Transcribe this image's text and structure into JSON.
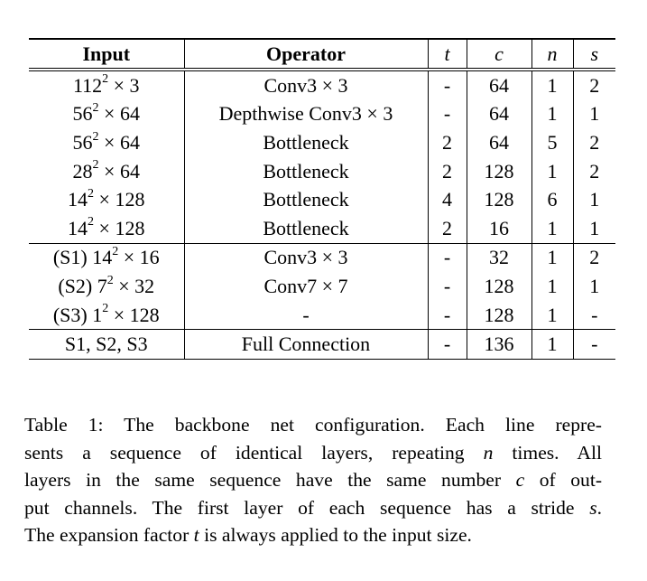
{
  "table": {
    "headers": [
      {
        "text": "Input",
        "italic": false
      },
      {
        "text": "Operator",
        "italic": false
      },
      {
        "text": "t",
        "italic": true
      },
      {
        "text": "c",
        "italic": true
      },
      {
        "text": "n",
        "italic": true
      },
      {
        "text": "s",
        "italic": true
      }
    ],
    "groups": [
      {
        "rows": [
          {
            "input": {
              "pre": "",
              "base": "112",
              "exp": "2",
              "post": " × 3"
            },
            "operator": "Conv3 × 3",
            "t": "-",
            "c": "64",
            "n": "1",
            "s": "2"
          },
          {
            "input": {
              "pre": "",
              "base": "56",
              "exp": "2",
              "post": " × 64"
            },
            "operator": "Depthwise Conv3 × 3",
            "t": "-",
            "c": "64",
            "n": "1",
            "s": "1"
          },
          {
            "input": {
              "pre": "",
              "base": "56",
              "exp": "2",
              "post": " × 64"
            },
            "operator": "Bottleneck",
            "t": "2",
            "c": "64",
            "n": "5",
            "s": "2"
          },
          {
            "input": {
              "pre": "",
              "base": "28",
              "exp": "2",
              "post": " × 64"
            },
            "operator": "Bottleneck",
            "t": "2",
            "c": "128",
            "n": "1",
            "s": "2"
          },
          {
            "input": {
              "pre": "",
              "base": "14",
              "exp": "2",
              "post": " × 128"
            },
            "operator": "Bottleneck",
            "t": "4",
            "c": "128",
            "n": "6",
            "s": "1"
          },
          {
            "input": {
              "pre": "",
              "base": "14",
              "exp": "2",
              "post": " × 128"
            },
            "operator": "Bottleneck",
            "t": "2",
            "c": "16",
            "n": "1",
            "s": "1"
          }
        ]
      },
      {
        "rows": [
          {
            "input": {
              "pre": "(S1) ",
              "base": "14",
              "exp": "2",
              "post": " × 16"
            },
            "operator": "Conv3 × 3",
            "t": "-",
            "c": "32",
            "n": "1",
            "s": "2"
          },
          {
            "input": {
              "pre": "(S2) ",
              "base": "7",
              "exp": "2",
              "post": " × 32"
            },
            "operator": "Conv7 × 7",
            "t": "-",
            "c": "128",
            "n": "1",
            "s": "1"
          },
          {
            "input": {
              "pre": "(S3) ",
              "base": "1",
              "exp": "2",
              "post": " × 128"
            },
            "operator": "-",
            "t": "-",
            "c": "128",
            "n": "1",
            "s": "-"
          }
        ]
      },
      {
        "rows": [
          {
            "input": {
              "pre": "S1, S2, S3",
              "base": "",
              "exp": "",
              "post": ""
            },
            "operator": "Full Connection",
            "t": "-",
            "c": "136",
            "n": "1",
            "s": "-"
          }
        ]
      }
    ]
  },
  "caption": {
    "lines": [
      [
        {
          "t": "Table 1: The backbone net configuration. Each line repre-"
        }
      ],
      [
        {
          "t": "sents a sequence of identical layers, repeating "
        },
        {
          "t": "n",
          "i": true
        },
        {
          "t": " times. All"
        }
      ],
      [
        {
          "t": "layers in the same sequence have the same number "
        },
        {
          "t": "c",
          "i": true
        },
        {
          "t": " of out-"
        }
      ],
      [
        {
          "t": "put channels. The first layer of each sequence has a stride "
        },
        {
          "t": "s",
          "i": true
        },
        {
          "t": "."
        }
      ],
      [
        {
          "t": "The expansion factor "
        },
        {
          "t": "t",
          "i": true
        },
        {
          "t": " is always applied to the input size."
        }
      ]
    ]
  }
}
